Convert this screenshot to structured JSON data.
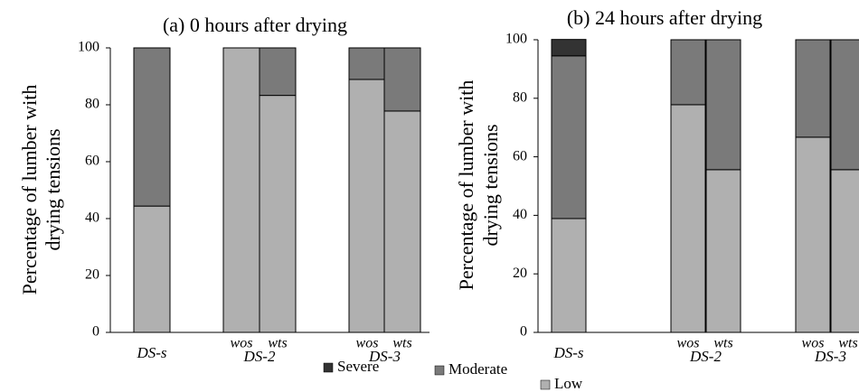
{
  "chart_data": [
    {
      "type": "stacked-bar",
      "title": "(a)  0 hours after drying",
      "ylabel": [
        "Percentage of lumber with",
        "drying tensions"
      ],
      "groups": [
        {
          "name": "DS-s",
          "categories": [
            null
          ]
        },
        {
          "name": "DS-2",
          "categories": [
            "wos",
            "wts"
          ]
        },
        {
          "name": "DS-3",
          "categories": [
            "wos",
            "wts"
          ]
        }
      ],
      "series": [
        {
          "name": "Low",
          "color": "#b0b0b0",
          "values": [
            44.4,
            100,
            83.3,
            88.9,
            77.8
          ]
        },
        {
          "name": "Moderate",
          "color": "#7a7a7a",
          "values": [
            55.6,
            0,
            16.7,
            11.1,
            22.2
          ]
        },
        {
          "name": "Severe",
          "color": "#333333",
          "values": [
            0,
            0,
            0,
            0,
            0
          ]
        }
      ],
      "ylim": [
        0,
        100
      ],
      "yticks": [
        0,
        20,
        40,
        60,
        80,
        100
      ]
    },
    {
      "type": "stacked-bar",
      "title": "(b) 24 hours after drying",
      "ylabel": [
        "Percentage of lumber with",
        "drying tensions"
      ],
      "groups": [
        {
          "name": "DS-s",
          "categories": [
            null
          ]
        },
        {
          "name": "DS-2",
          "categories": [
            "wos",
            "wts"
          ]
        },
        {
          "name": "DS-3",
          "categories": [
            "wos",
            "wts"
          ]
        }
      ],
      "series": [
        {
          "color": "#b0b0b0",
          "values": [
            38.9,
            77.8,
            55.6,
            66.7,
            55.6
          ]
        },
        {
          "color": "#7a7a7a",
          "values": [
            55.6,
            22.2,
            44.4,
            33.3,
            44.4
          ]
        },
        {
          "color": "#333333",
          "values": [
            5.6,
            0,
            0,
            0,
            0
          ]
        }
      ],
      "ylim": [
        0,
        100
      ],
      "yticks": [
        0,
        20,
        40,
        60,
        80,
        100
      ]
    }
  ]
}
